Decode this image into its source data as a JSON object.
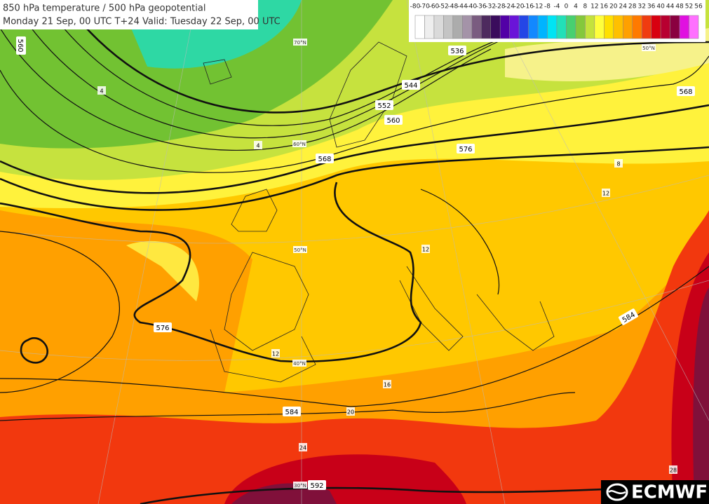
{
  "header": {
    "title": "850 hPa temperature / 500 hPa geopotential",
    "subtitle": "Monday 21 Sep, 00 UTC T+24 Valid: Tuesday 22 Sep, 00 UTC"
  },
  "legend": {
    "levels": [
      -80,
      -70,
      -60,
      -52,
      -48,
      -44,
      -40,
      -36,
      -32,
      -28,
      -24,
      -20,
      -16,
      -12,
      -8,
      -4,
      0,
      4,
      8,
      12,
      16,
      20,
      24,
      28,
      32,
      36,
      40,
      44,
      48,
      52,
      56
    ],
    "colors": [
      "#ffffff",
      "#eeeeee",
      "#dadada",
      "#c4c4c4",
      "#acacac",
      "#a493a8",
      "#7a5c80",
      "#4d2a5e",
      "#3a0c5c",
      "#5200a6",
      "#6a14d8",
      "#2446e6",
      "#1288ff",
      "#00b4ff",
      "#00e4f4",
      "#22e0b8",
      "#48d070",
      "#84c83c",
      "#c4e23c",
      "#ffff3c",
      "#ffe000",
      "#ffc000",
      "#ffa000",
      "#ff7a00",
      "#f03c10",
      "#d80010",
      "#b80030",
      "#8a0040",
      "#e010e0",
      "#ff70ff"
    ]
  },
  "map": {
    "geopotential_labels": [
      536,
      544,
      552,
      560,
      568,
      576,
      576,
      584,
      584,
      592,
      568,
      560
    ],
    "temperature_labels": [
      4,
      4,
      8,
      12,
      12,
      12,
      16,
      20,
      24,
      28
    ],
    "latitude_labels": [
      "70°N",
      "60°N",
      "50°N",
      "40°N",
      "30°N",
      "50°N"
    ]
  },
  "logo": "ECMWF"
}
